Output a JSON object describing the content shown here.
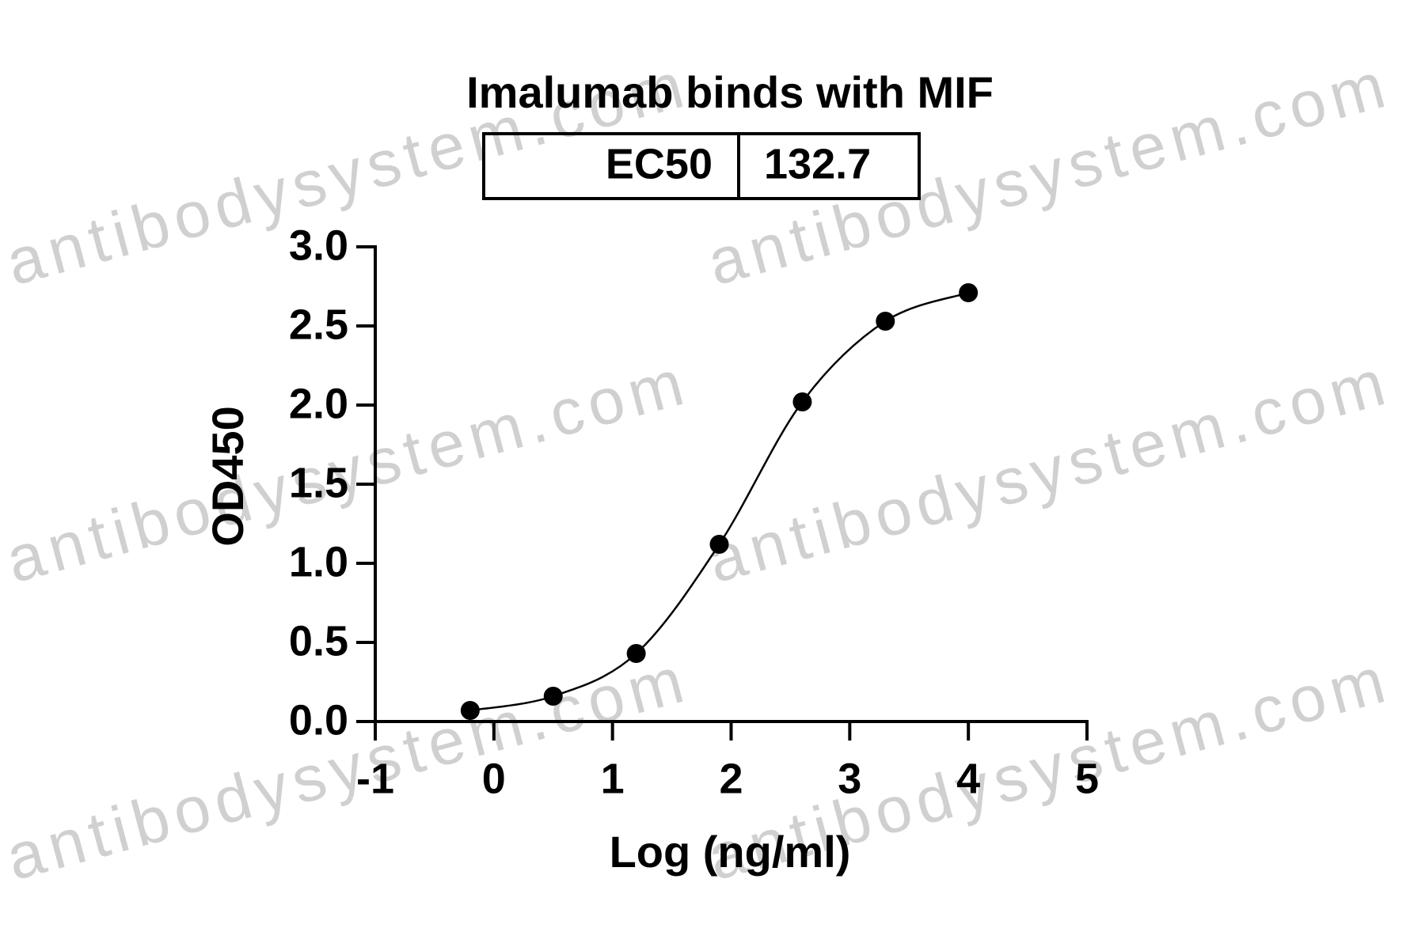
{
  "chart_data": {
    "type": "scatter",
    "title": "Imalumab binds with MIF",
    "watermark": "antibodysystem.com",
    "ec50_table": {
      "label": "EC50",
      "value": 132.7
    },
    "x_label": "Log (ng/ml)",
    "y_label": "OD450",
    "series": [
      {
        "name": "Imalumab",
        "color": "#000000",
        "x": [
          -0.2,
          0.5,
          1.2,
          1.9,
          2.6,
          3.3,
          4.0
        ],
        "values": [
          0.07,
          0.16,
          0.43,
          1.12,
          2.02,
          2.53,
          2.71
        ]
      }
    ],
    "xlim": [
      -1,
      5
    ],
    "xticks": [
      -1,
      0,
      1,
      2,
      3,
      4,
      5
    ],
    "ylim": [
      0,
      3
    ],
    "yticks": [
      {
        "value": 0,
        "label": "0.0"
      },
      {
        "value": 0.5,
        "label": "0.5"
      },
      {
        "value": 1,
        "label": "1.0"
      },
      {
        "value": 1.5,
        "label": "1.5"
      },
      {
        "value": 2,
        "label": "2.0"
      },
      {
        "value": 2.5,
        "label": "2.5"
      },
      {
        "value": 3,
        "label": "3.0"
      }
    ]
  }
}
